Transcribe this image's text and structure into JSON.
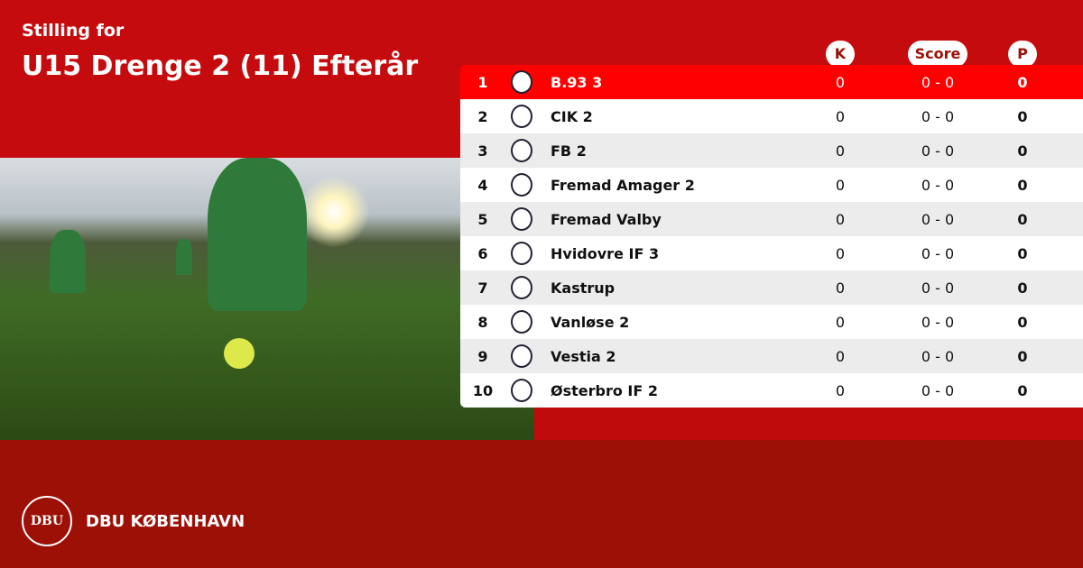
{
  "header": {
    "subtitle": "Stilling for",
    "title": "U15 Drenge 2 (11) Efterår"
  },
  "columns": {
    "k": "K",
    "score": "Score",
    "p": "P"
  },
  "colors": {
    "primary": "#c50b0e",
    "highlight": "#ff0000",
    "footer": "#9c1006"
  },
  "rows": [
    {
      "rank": "1",
      "team": "B.93 3",
      "k": "0",
      "score": "0 - 0",
      "p": "0",
      "highlighted": true
    },
    {
      "rank": "2",
      "team": "CIK 2",
      "k": "0",
      "score": "0 - 0",
      "p": "0"
    },
    {
      "rank": "3",
      "team": "FB 2",
      "k": "0",
      "score": "0 - 0",
      "p": "0"
    },
    {
      "rank": "4",
      "team": "Fremad Amager 2",
      "k": "0",
      "score": "0 - 0",
      "p": "0"
    },
    {
      "rank": "5",
      "team": "Fremad Valby",
      "k": "0",
      "score": "0 - 0",
      "p": "0"
    },
    {
      "rank": "6",
      "team": "Hvidovre IF 3",
      "k": "0",
      "score": "0 - 0",
      "p": "0"
    },
    {
      "rank": "7",
      "team": "Kastrup",
      "k": "0",
      "score": "0 - 0",
      "p": "0"
    },
    {
      "rank": "8",
      "team": "Vanløse 2",
      "k": "0",
      "score": "0 - 0",
      "p": "0"
    },
    {
      "rank": "9",
      "team": "Vestia 2",
      "k": "0",
      "score": "0 - 0",
      "p": "0"
    },
    {
      "rank": "10",
      "team": "Østerbro IF 2",
      "k": "0",
      "score": "0 - 0",
      "p": "0"
    }
  ],
  "footer": {
    "brand": "DBU KØBENHAVN",
    "logo_text": "DBU"
  }
}
